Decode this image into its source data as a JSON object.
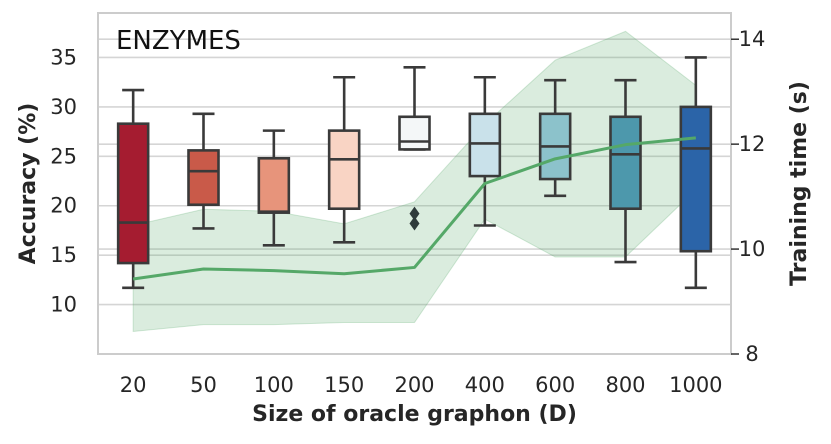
{
  "chart_data": {
    "type": "box",
    "title": "ENZYMES",
    "xlabel": "Size of oracle graphon (D)",
    "ylabel": "Accuracy (%)",
    "y2label": "Training time (s)",
    "categories": [
      "20",
      "50",
      "100",
      "150",
      "200",
      "400",
      "600",
      "800",
      "1000"
    ],
    "ylim": [
      5,
      39.5
    ],
    "yticks": [
      10,
      15,
      20,
      25,
      30,
      35
    ],
    "y2lim": [
      8,
      14.5
    ],
    "y2ticks": [
      8,
      10,
      12,
      14
    ],
    "grid": true,
    "boxes": [
      {
        "category": "20",
        "whisker_low": 11.7,
        "q1": 14.2,
        "median": 18.3,
        "q3": 28.3,
        "whisker_high": 31.7,
        "outliers": [],
        "color": "#a51c30"
      },
      {
        "category": "50",
        "whisker_low": 17.7,
        "q1": 20.1,
        "median": 23.5,
        "q3": 25.6,
        "whisker_high": 29.3,
        "outliers": [],
        "color": "#c95a49"
      },
      {
        "category": "100",
        "whisker_low": 16.0,
        "q1": 19.3,
        "median": 19.4,
        "q3": 24.8,
        "whisker_high": 27.6,
        "outliers": [],
        "color": "#e7947b"
      },
      {
        "category": "150",
        "whisker_low": 16.3,
        "q1": 19.7,
        "median": 24.7,
        "q3": 27.6,
        "whisker_high": 33.0,
        "outliers": [],
        "color": "#f9d4c4"
      },
      {
        "category": "200",
        "whisker_low": 25.7,
        "q1": 25.7,
        "median": 26.5,
        "q3": 29.0,
        "whisker_high": 34.0,
        "outliers": [
          18.2,
          19.2
        ],
        "color": "#f4f7f8"
      },
      {
        "category": "400",
        "whisker_low": 18.0,
        "q1": 23.0,
        "median": 26.3,
        "q3": 29.3,
        "whisker_high": 33.0,
        "outliers": [],
        "color": "#c9e1ea"
      },
      {
        "category": "600",
        "whisker_low": 21.0,
        "q1": 22.7,
        "median": 26.0,
        "q3": 29.3,
        "whisker_high": 32.7,
        "outliers": [],
        "color": "#8cc2cb"
      },
      {
        "category": "800",
        "whisker_low": 14.3,
        "q1": 19.7,
        "median": 25.2,
        "q3": 29.0,
        "whisker_high": 32.7,
        "outliers": [],
        "color": "#4d98ac"
      },
      {
        "category": "1000",
        "whisker_low": 11.7,
        "q1": 15.4,
        "median": 25.8,
        "q3": 30.0,
        "whisker_high": 35.0,
        "outliers": [],
        "color": "#2b64a8"
      }
    ],
    "training_time": {
      "axis": "right",
      "color": "#55a868",
      "band_color": "#55a868",
      "mean": [
        9.43,
        9.62,
        9.59,
        9.53,
        9.65,
        11.25,
        11.72,
        11.99,
        12.12
      ],
      "lower": [
        8.43,
        8.56,
        8.56,
        8.6,
        8.6,
        10.57,
        9.85,
        9.85,
        11.13
      ],
      "upper": [
        10.45,
        10.76,
        10.72,
        10.48,
        10.9,
        12.38,
        13.6,
        14.15,
        13.12
      ]
    }
  }
}
